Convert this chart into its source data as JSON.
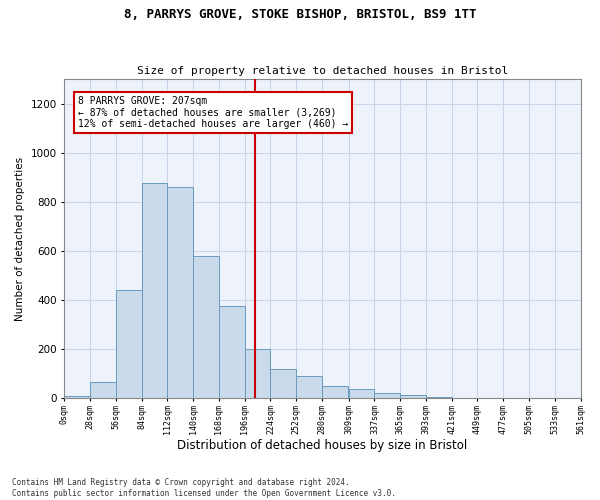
{
  "title1": "8, PARRYS GROVE, STOKE BISHOP, BRISTOL, BS9 1TT",
  "title2": "Size of property relative to detached houses in Bristol",
  "xlabel": "Distribution of detached houses by size in Bristol",
  "ylabel": "Number of detached properties",
  "property_size": 207,
  "property_label": "8 PARRYS GROVE: 207sqm",
  "annotation_line1": "← 87% of detached houses are smaller (3,269)",
  "annotation_line2": "12% of semi-detached houses are larger (460) →",
  "bar_color": "#c9daea",
  "bar_edge_color": "#6a9abf",
  "vline_color": "#cc0000",
  "annotation_box_edge": "#cc0000",
  "grid_color": "#c8d4e8",
  "background_color": "#eef2fb",
  "footer1": "Contains HM Land Registry data © Crown copyright and database right 2024.",
  "footer2": "Contains public sector information licensed under the Open Government Licence v3.0.",
  "bin_edges": [
    0,
    28,
    56,
    84,
    112,
    140,
    168,
    196,
    224,
    252,
    280,
    309,
    337,
    365,
    393,
    421,
    449,
    477,
    505,
    533,
    561
  ],
  "bin_labels": [
    "0sqm",
    "28sqm",
    "56sqm",
    "84sqm",
    "112sqm",
    "140sqm",
    "168sqm",
    "196sqm",
    "224sqm",
    "252sqm",
    "280sqm",
    "309sqm",
    "337sqm",
    "365sqm",
    "393sqm",
    "421sqm",
    "449sqm",
    "477sqm",
    "505sqm",
    "533sqm",
    "561sqm"
  ],
  "bar_heights_actual": [
    10,
    65,
    440,
    875,
    860,
    580,
    375,
    200,
    120,
    90,
    50,
    40,
    20,
    15,
    5,
    3,
    1,
    1,
    0,
    0
  ],
  "ylim": [
    0,
    1300
  ],
  "yticks": [
    0,
    200,
    400,
    600,
    800,
    1000,
    1200
  ]
}
